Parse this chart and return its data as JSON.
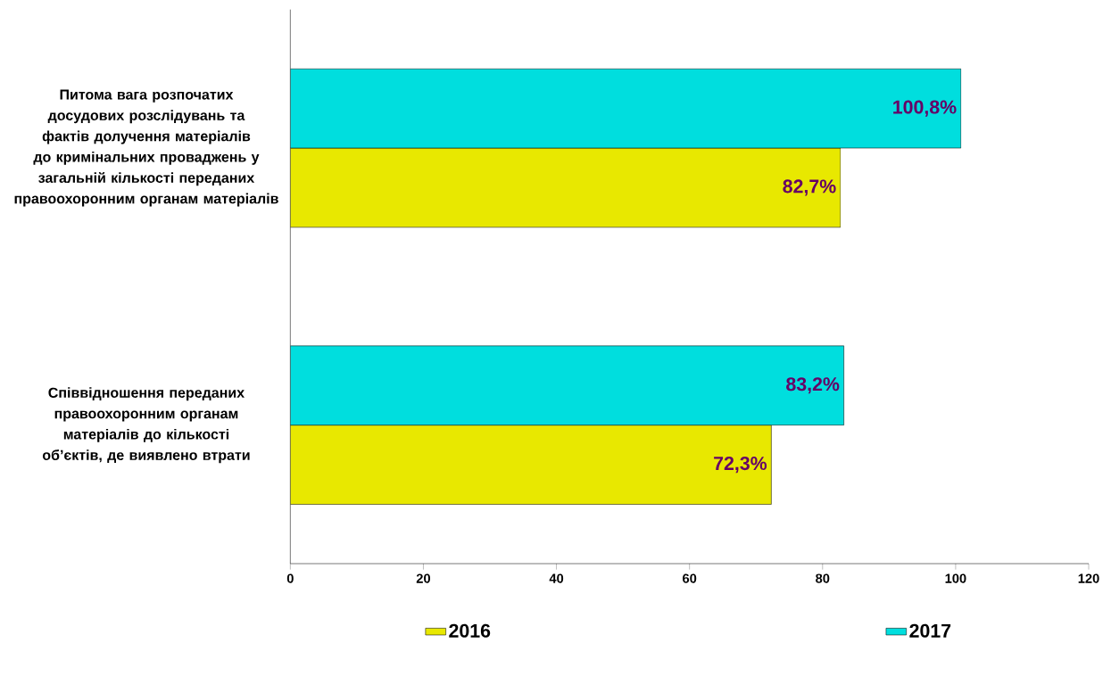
{
  "chart_data": {
    "type": "bar",
    "orientation": "horizontal",
    "categories": [
      "Питома вага розпочатих досудових розслідувань та фактів долучення матеріалів до кримінальних проваджень у загальній кількості переданих правоохоронним органам матеріалів",
      "Співвідношення переданих правоохоронним органам матеріалів до кількості об’єктів, де виявлено втрати"
    ],
    "series": [
      {
        "name": "2016",
        "color": "#e8e800",
        "values": [
          82.7,
          72.3
        ],
        "value_labels": [
          "82,7%",
          "72,3%"
        ]
      },
      {
        "name": "2017",
        "color": "#00dede",
        "values": [
          100.8,
          83.2
        ],
        "value_labels": [
          "100,8%",
          "83,2%"
        ]
      }
    ],
    "xlim": [
      0,
      120
    ],
    "xticks": [
      0,
      20,
      40,
      60,
      80,
      100,
      120
    ],
    "legend": "bottom"
  }
}
